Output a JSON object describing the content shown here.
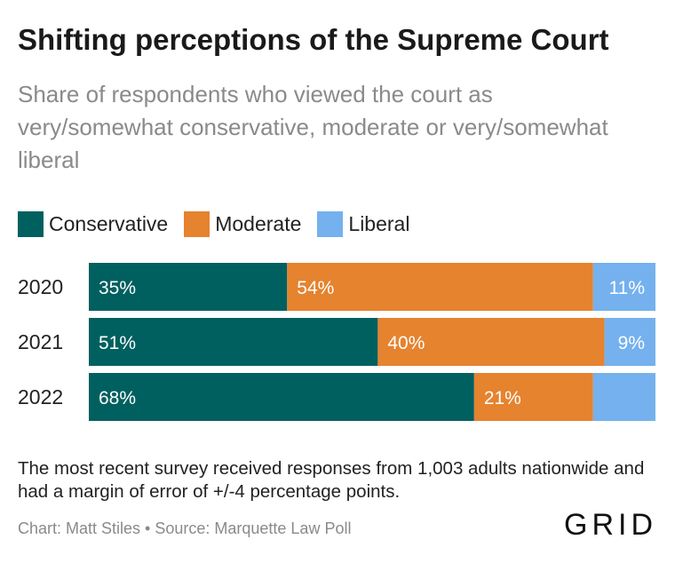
{
  "title": "Shifting perceptions of the Supreme Court",
  "subtitle": "Share of respondents who viewed the court as very/somewhat conservative, moderate or very/somewhat liberal",
  "legend": [
    {
      "label": "Conservative",
      "color": "#00605f"
    },
    {
      "label": "Moderate",
      "color": "#e5832f"
    },
    {
      "label": "Liberal",
      "color": "#74b1ee"
    }
  ],
  "note": "The most recent survey received responses from 1,003 adults nationwide and had a margin of error of +/-4 percentage points.",
  "source": "Chart: Matt Stiles • Source: Marquette Law Poll",
  "logo": "GRID",
  "chart_data": {
    "type": "bar",
    "orientation": "horizontal",
    "stacked": "100%",
    "categories": [
      "2020",
      "2021",
      "2022"
    ],
    "series": [
      {
        "name": "Conservative",
        "color": "#00605f",
        "values": [
          35,
          51,
          68
        ],
        "labels": [
          "35%",
          "51%",
          "68%"
        ]
      },
      {
        "name": "Moderate",
        "color": "#e5832f",
        "values": [
          54,
          40,
          21
        ],
        "labels": [
          "54%",
          "40%",
          "21%"
        ]
      },
      {
        "name": "Liberal",
        "color": "#74b1ee",
        "values": [
          11,
          9,
          11
        ],
        "labels": [
          "11%",
          "9%",
          ""
        ]
      }
    ],
    "xlim": [
      0,
      100
    ],
    "grid": false,
    "legend_position": "top-left"
  }
}
